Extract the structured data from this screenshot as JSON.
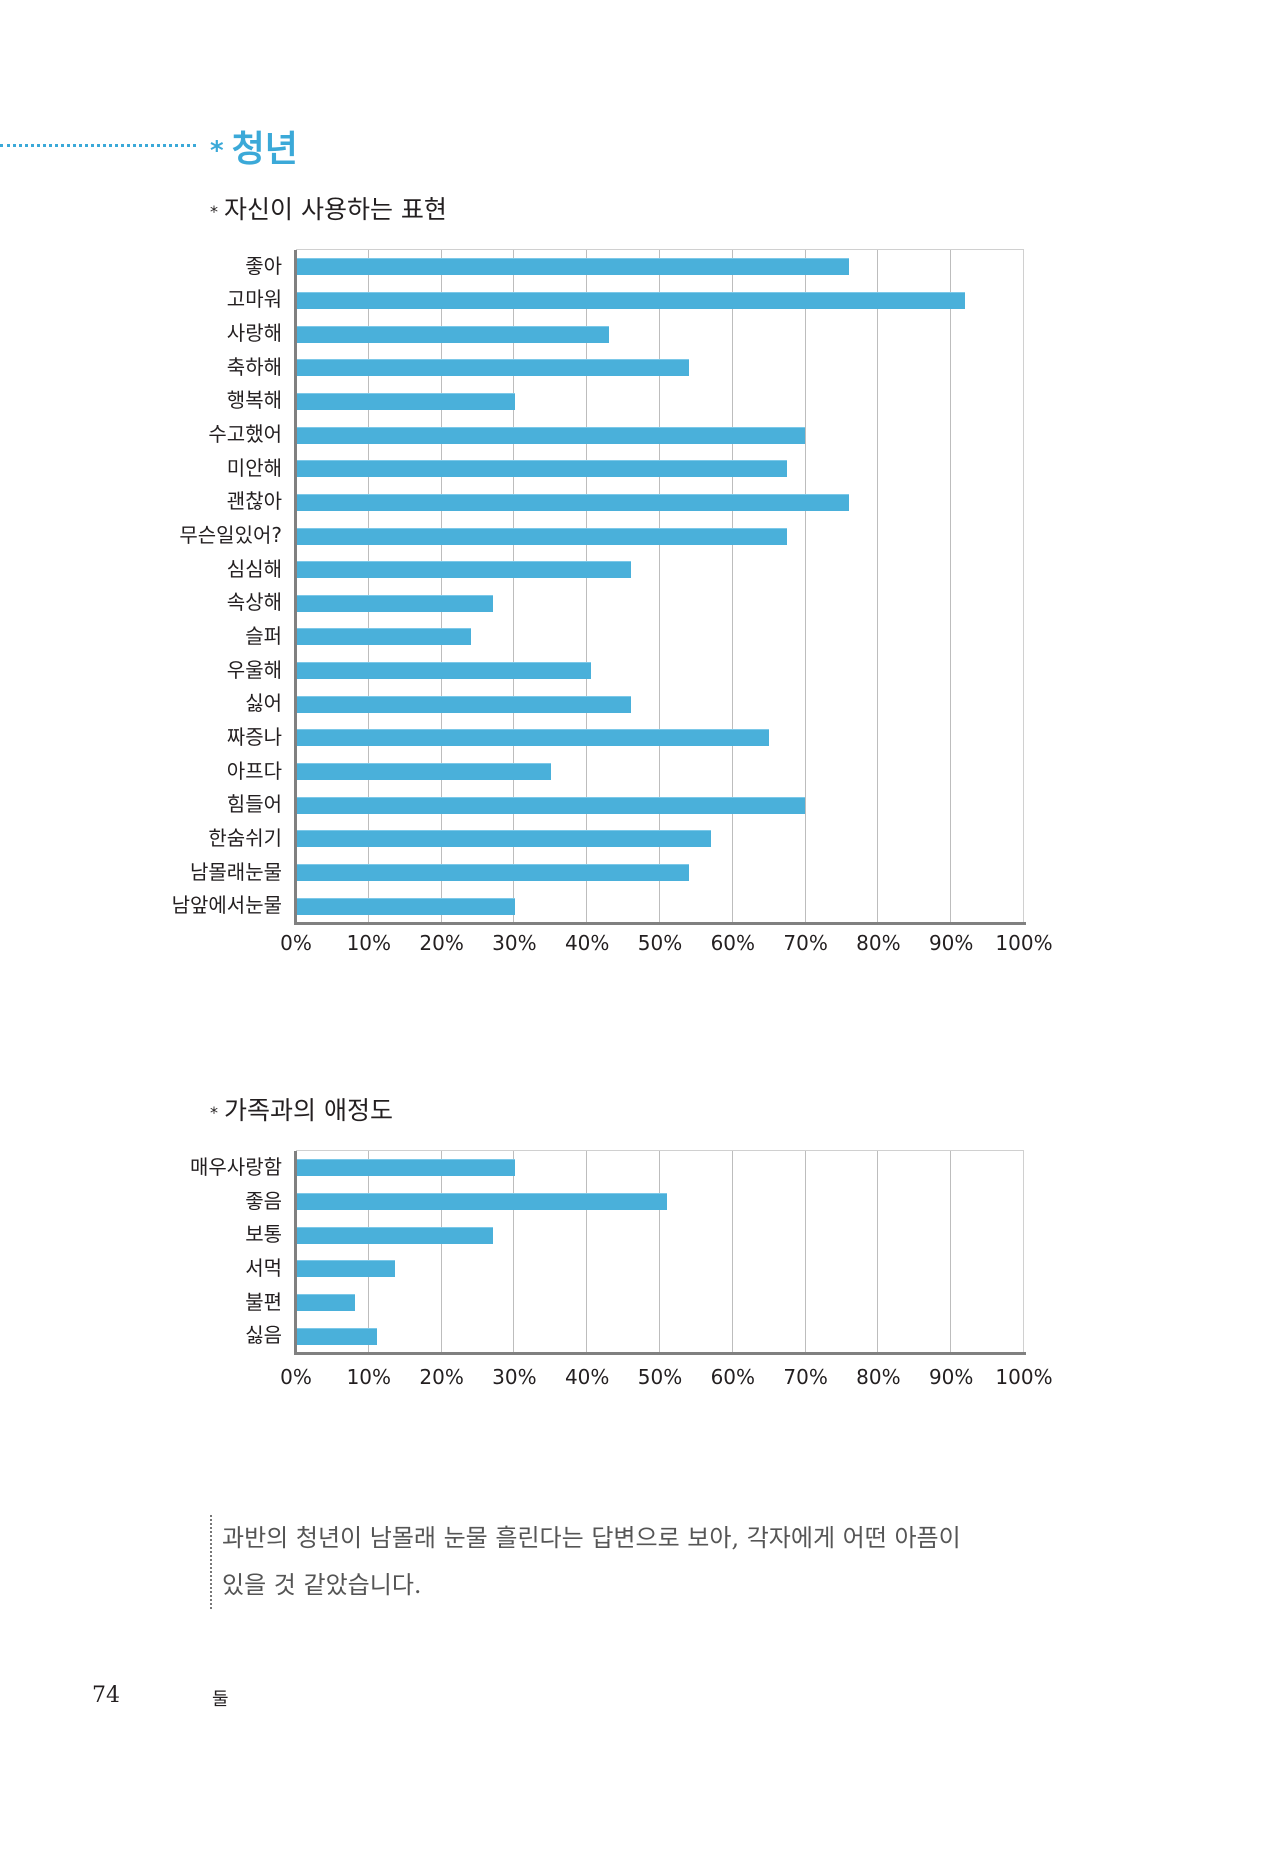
{
  "section": {
    "marker": "*",
    "title": "청년"
  },
  "chart_data": [
    {
      "type": "bar",
      "orientation": "horizontal",
      "title": "자신이 사용하는 표현",
      "title_marker": "*",
      "categories": [
        "좋아",
        "고마워",
        "사랑해",
        "축하해",
        "행복해",
        "수고했어",
        "미안해",
        "괜찮아",
        "무슨일있어?",
        "심심해",
        "속상해",
        "슬퍼",
        "우울해",
        "싫어",
        "짜증나",
        "아프다",
        "힘들어",
        "한숨쉬기",
        "남몰래눈물",
        "남앞에서눈물"
      ],
      "values": [
        76,
        92,
        43,
        54,
        30,
        70,
        67.5,
        76,
        67.5,
        46,
        27,
        24,
        40.5,
        46,
        65,
        35,
        70,
        57,
        54,
        30
      ],
      "xlim": [
        0,
        100
      ],
      "xticks": [
        "0%",
        "10%",
        "20%",
        "30%",
        "40%",
        "50%",
        "60%",
        "70%",
        "80%",
        "90%",
        "100%"
      ],
      "grid": true,
      "bar_color": "#4ab0da"
    },
    {
      "type": "bar",
      "orientation": "horizontal",
      "title": "가족과의 애정도",
      "title_marker": "*",
      "categories": [
        "매우사랑함",
        "좋음",
        "보통",
        "서먹",
        "불편",
        "싫음"
      ],
      "values": [
        30,
        51,
        27,
        13.5,
        8,
        11
      ],
      "xlim": [
        0,
        100
      ],
      "xticks": [
        "0%",
        "10%",
        "20%",
        "30%",
        "40%",
        "50%",
        "60%",
        "70%",
        "80%",
        "90%",
        "100%"
      ],
      "grid": true,
      "bar_color": "#4ab0da"
    }
  ],
  "note": "과반의 청년이 남몰래 눈물 흘린다는 답변으로 보아, 각자에게 어떤 아픔이 있을 것 같았습니다.",
  "footer": {
    "page_number": "74",
    "chapter": "둘"
  }
}
